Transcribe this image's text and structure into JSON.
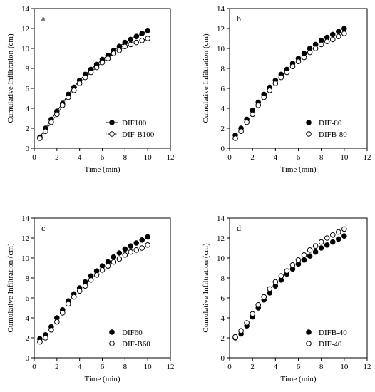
{
  "chart_data": [
    {
      "type": "scatter",
      "panel_label": "a",
      "xlabel": "Time (min)",
      "ylabel": "Cumulative Infiltration (cm)",
      "xlim": [
        0,
        12
      ],
      "ylim": [
        0,
        14
      ],
      "xticks": [
        "0",
        "2",
        "4",
        "6",
        "8",
        "10",
        "12"
      ],
      "yticks": [
        "0",
        "2",
        "4",
        "6",
        "8",
        "10",
        "12",
        "14"
      ],
      "legend_position": "bottom-right",
      "series": [
        {
          "name": "DIF100",
          "marker": "filled",
          "line": "solid",
          "x": [
            0.5,
            1,
            1.5,
            2,
            2.5,
            3,
            3.5,
            4,
            4.5,
            5,
            5.5,
            6,
            6.5,
            7,
            7.5,
            8,
            8.5,
            9,
            9.5,
            10
          ],
          "y": [
            1.1,
            2.0,
            2.9,
            3.7,
            4.5,
            5.4,
            6.1,
            6.8,
            7.4,
            7.9,
            8.4,
            8.9,
            9.3,
            9.8,
            10.2,
            10.6,
            10.9,
            11.2,
            11.5,
            11.8
          ]
        },
        {
          "name": "DIF-B100",
          "marker": "open",
          "line": "dotted",
          "x": [
            0.5,
            1,
            1.5,
            2,
            2.5,
            3,
            3.5,
            4,
            4.5,
            5,
            5.5,
            6,
            6.5,
            7,
            7.5,
            8,
            8.5,
            9,
            9.5,
            10
          ],
          "y": [
            1.0,
            1.7,
            2.6,
            3.4,
            4.3,
            5.1,
            5.8,
            6.5,
            7.1,
            7.6,
            8.1,
            8.6,
            9.0,
            9.5,
            9.8,
            10.2,
            10.4,
            10.6,
            10.8,
            11.0
          ]
        }
      ]
    },
    {
      "type": "scatter",
      "panel_label": "b",
      "xlabel": "Time (min)",
      "ylabel": "Cumulative Infiltration (cm)",
      "xlim": [
        0,
        12
      ],
      "ylim": [
        0,
        14
      ],
      "xticks": [
        "0",
        "2",
        "4",
        "6",
        "8",
        "10",
        "12"
      ],
      "yticks": [
        "0",
        "2",
        "4",
        "6",
        "8",
        "10",
        "12",
        "14"
      ],
      "legend_position": "bottom-right",
      "series": [
        {
          "name": "DIF-80",
          "marker": "filled",
          "line": "none",
          "x": [
            0.5,
            1,
            1.5,
            2,
            2.5,
            3,
            3.5,
            4,
            4.5,
            5,
            5.5,
            6,
            6.5,
            7,
            7.5,
            8,
            8.5,
            9,
            9.5,
            10
          ],
          "y": [
            1.3,
            2.0,
            2.9,
            3.8,
            4.6,
            5.4,
            6.1,
            6.8,
            7.4,
            7.9,
            8.5,
            9.0,
            9.5,
            10.0,
            10.4,
            10.8,
            11.1,
            11.4,
            11.7,
            12.0
          ]
        },
        {
          "name": "DIFB-80",
          "marker": "open",
          "line": "none",
          "x": [
            0.5,
            1,
            1.5,
            2,
            2.5,
            3,
            3.5,
            4,
            4.5,
            5,
            5.5,
            6,
            6.5,
            7,
            7.5,
            8,
            8.5,
            9,
            9.5,
            10
          ],
          "y": [
            1.0,
            1.7,
            2.6,
            3.4,
            4.3,
            5.1,
            5.8,
            6.5,
            7.1,
            7.6,
            8.2,
            8.7,
            9.1,
            9.6,
            10.0,
            10.4,
            10.7,
            10.9,
            11.2,
            11.5
          ]
        }
      ]
    },
    {
      "type": "scatter",
      "panel_label": "c",
      "xlabel": "Time (min)",
      "ylabel": "Cumulative Infiltration (cm)",
      "xlim": [
        0,
        12
      ],
      "ylim": [
        0,
        14
      ],
      "xticks": [
        "0",
        "2",
        "4",
        "6",
        "8",
        "10",
        "12"
      ],
      "yticks": [
        "0",
        "2",
        "4",
        "6",
        "8",
        "10",
        "12",
        "14"
      ],
      "legend_position": "bottom-right",
      "series": [
        {
          "name": "DIF60",
          "marker": "filled",
          "line": "none",
          "x": [
            0.5,
            1,
            1.5,
            2,
            2.5,
            3,
            3.5,
            4,
            4.5,
            5,
            5.5,
            6,
            6.5,
            7,
            7.5,
            8,
            8.5,
            9,
            9.5,
            10
          ],
          "y": [
            1.9,
            2.3,
            3.1,
            4.0,
            4.8,
            5.7,
            6.4,
            7.0,
            7.6,
            8.2,
            8.7,
            9.2,
            9.6,
            10.1,
            10.5,
            10.9,
            11.2,
            11.5,
            11.8,
            12.1
          ]
        },
        {
          "name": "DIF-B60",
          "marker": "open",
          "line": "none",
          "x": [
            0.5,
            1,
            1.5,
            2,
            2.5,
            3,
            3.5,
            4,
            4.5,
            5,
            5.5,
            6,
            6.5,
            7,
            7.5,
            8,
            8.5,
            9,
            9.5,
            10
          ],
          "y": [
            1.6,
            2.0,
            2.8,
            3.6,
            4.5,
            5.4,
            6.1,
            6.7,
            7.2,
            7.8,
            8.3,
            8.8,
            9.2,
            9.6,
            9.9,
            10.3,
            10.6,
            10.8,
            11.0,
            11.3
          ]
        }
      ]
    },
    {
      "type": "scatter",
      "panel_label": "d",
      "xlabel": "Time (min)",
      "ylabel": "Cumulative Infiltration (cm)",
      "xlim": [
        0,
        12
      ],
      "ylim": [
        0,
        14
      ],
      "xticks": [
        "0",
        "2",
        "4",
        "6",
        "8",
        "10",
        "12"
      ],
      "yticks": [
        "0",
        "2",
        "4",
        "6",
        "8",
        "10",
        "12",
        "14"
      ],
      "legend_position": "bottom-right",
      "series": [
        {
          "name": "DIFB-40",
          "marker": "filled",
          "line": "none",
          "x": [
            0.5,
            1,
            1.5,
            2,
            2.5,
            3,
            3.5,
            4,
            4.5,
            5,
            5.5,
            6,
            6.5,
            7,
            7.5,
            8,
            8.5,
            9,
            9.5,
            10
          ],
          "y": [
            2.0,
            2.4,
            3.2,
            4.1,
            5.0,
            5.8,
            6.5,
            7.2,
            7.8,
            8.4,
            8.9,
            9.4,
            9.8,
            10.2,
            10.6,
            11.0,
            11.3,
            11.6,
            11.9,
            12.2
          ]
        },
        {
          "name": "DIF-40",
          "marker": "open",
          "line": "none",
          "x": [
            0.5,
            1,
            1.5,
            2,
            2.5,
            3,
            3.5,
            4,
            4.5,
            5,
            5.5,
            6,
            6.5,
            7,
            7.5,
            8,
            8.5,
            9,
            9.5,
            10
          ],
          "y": [
            2.1,
            2.7,
            3.5,
            4.4,
            5.3,
            6.1,
            6.9,
            7.6,
            8.2,
            8.7,
            9.3,
            9.8,
            10.3,
            10.8,
            11.2,
            11.6,
            12.0,
            12.3,
            12.6,
            12.9
          ]
        }
      ]
    }
  ]
}
